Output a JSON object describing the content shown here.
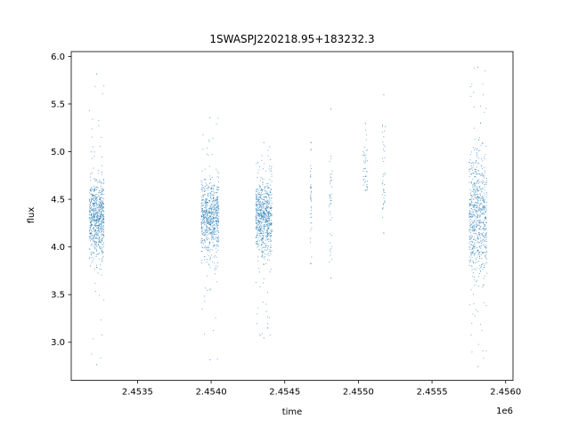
{
  "chart_data": {
    "type": "scatter",
    "title": "1SWASPJ220218.95+183232.3",
    "xlabel": "time",
    "ylabel": "flux",
    "x_offset_label": "1e6",
    "xlim": [
      2.45305,
      2.45605
    ],
    "ylim": [
      2.6,
      6.05
    ],
    "x_ticks": [
      2.4535,
      2.454,
      2.4545,
      2.455,
      2.4555,
      2.456
    ],
    "x_tick_labels": [
      "2.4535",
      "2.4540",
      "2.4545",
      "2.4550",
      "2.4555",
      "2.4560"
    ],
    "y_ticks": [
      3.0,
      3.5,
      4.0,
      4.5,
      5.0,
      5.5,
      6.0
    ],
    "y_tick_labels": [
      "3.0",
      "3.5",
      "4.0",
      "4.5",
      "5.0",
      "5.5",
      "6.0"
    ],
    "grid": false,
    "series_color": "#1f77b4",
    "clusters": [
      {
        "x_range": [
          2.45317,
          2.45327
        ],
        "y_center": 4.3,
        "y_spread": 0.2,
        "y_min": 2.77,
        "y_max": 5.82
      },
      {
        "x_range": [
          2.45393,
          2.45405
        ],
        "y_center": 4.3,
        "y_spread": 0.2,
        "y_min": 2.82,
        "y_max": 5.36
      },
      {
        "x_range": [
          2.4543,
          2.45441
        ],
        "y_center": 4.3,
        "y_spread": 0.2,
        "y_min": 3.05,
        "y_max": 5.1
      },
      {
        "x_range": [
          2.45467,
          2.45468
        ],
        "y_center": 4.5,
        "y_spread": 0.3,
        "y_min": 3.83,
        "y_max": 5.1
      },
      {
        "x_range": [
          2.4548,
          2.45482
        ],
        "y_center": 4.5,
        "y_spread": 0.3,
        "y_min": 3.68,
        "y_max": 5.45
      },
      {
        "x_range": [
          2.45503,
          2.45506
        ],
        "y_center": 4.85,
        "y_spread": 0.18,
        "y_min": 4.6,
        "y_max": 5.3
      },
      {
        "x_range": [
          2.45516,
          2.45518
        ],
        "y_center": 4.75,
        "y_spread": 0.3,
        "y_min": 4.15,
        "y_max": 5.6
      },
      {
        "x_range": [
          2.45575,
          2.45587
        ],
        "y_center": 4.3,
        "y_spread": 0.35,
        "y_min": 2.75,
        "y_max": 5.89
      }
    ]
  }
}
